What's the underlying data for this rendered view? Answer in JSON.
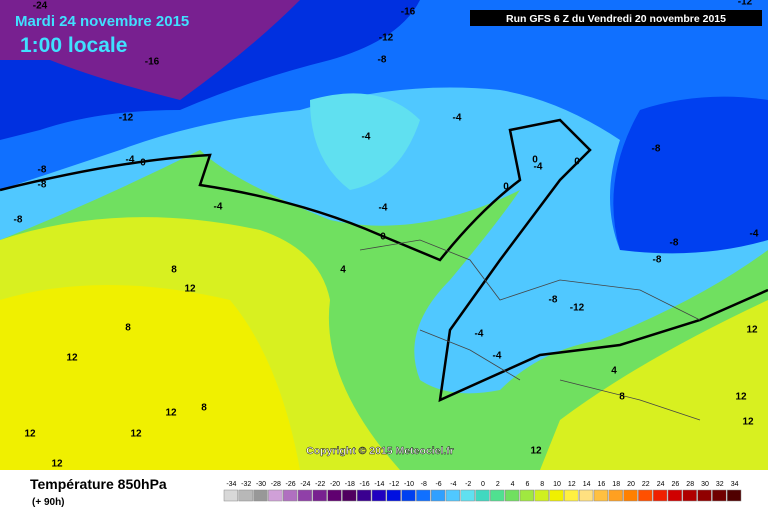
{
  "header": {
    "date": "Mardi 24 novembre 2015",
    "time": "1:00 locale",
    "run": "Run GFS 6 Z du Vendredi 20 novembre 2015"
  },
  "map": {
    "contour_labels": [
      -24,
      -16,
      -12,
      -8,
      -16,
      -12,
      -8,
      -8,
      -4,
      0,
      -4,
      -4,
      -8,
      -4,
      -4,
      0,
      4,
      8,
      12,
      8,
      12,
      12,
      8,
      12,
      12,
      12,
      12,
      -8,
      -8,
      -8,
      -4,
      0,
      0,
      0,
      -4,
      -8,
      -12,
      -4,
      -4,
      4,
      8,
      12,
      12,
      12,
      -12
    ]
  },
  "copyright": "Copyright © 2015 Meteociel.fr",
  "legend": {
    "title": "Température 850hPa",
    "lead": "(+ 90h)",
    "scale": [
      {
        "value": -34,
        "color": "#d8d8d8"
      },
      {
        "value": -32,
        "color": "#b8b8b8"
      },
      {
        "value": -30,
        "color": "#989898"
      },
      {
        "value": -28,
        "color": "#d0a0d8"
      },
      {
        "value": -26,
        "color": "#b070c0"
      },
      {
        "value": -24,
        "color": "#9040a8"
      },
      {
        "value": -22,
        "color": "#782090"
      },
      {
        "value": -20,
        "color": "#600070"
      },
      {
        "value": -18,
        "color": "#500060"
      },
      {
        "value": -16,
        "color": "#3a0090"
      },
      {
        "value": -14,
        "color": "#2000c0"
      },
      {
        "value": -12,
        "color": "#0010e0"
      },
      {
        "value": -10,
        "color": "#0040f0"
      },
      {
        "value": -8,
        "color": "#1070ff"
      },
      {
        "value": -6,
        "color": "#30a0ff"
      },
      {
        "value": -4,
        "color": "#50c8ff"
      },
      {
        "value": -2,
        "color": "#60e0f0"
      },
      {
        "value": 0,
        "color": "#40d8c0"
      },
      {
        "value": 2,
        "color": "#50e090"
      },
      {
        "value": 4,
        "color": "#70e060"
      },
      {
        "value": 6,
        "color": "#a0e840"
      },
      {
        "value": 8,
        "color": "#d0f020"
      },
      {
        "value": 10,
        "color": "#f0f000"
      },
      {
        "value": 12,
        "color": "#fff040"
      },
      {
        "value": 14,
        "color": "#ffe080"
      },
      {
        "value": 16,
        "color": "#ffc040"
      },
      {
        "value": 18,
        "color": "#ffa020"
      },
      {
        "value": 20,
        "color": "#ff8000"
      },
      {
        "value": 22,
        "color": "#ff5000"
      },
      {
        "value": 24,
        "color": "#f02000"
      },
      {
        "value": 26,
        "color": "#d00000"
      },
      {
        "value": 28,
        "color": "#b00000"
      },
      {
        "value": 30,
        "color": "#900000"
      },
      {
        "value": 32,
        "color": "#700000"
      },
      {
        "value": 34,
        "color": "#500000"
      }
    ]
  }
}
